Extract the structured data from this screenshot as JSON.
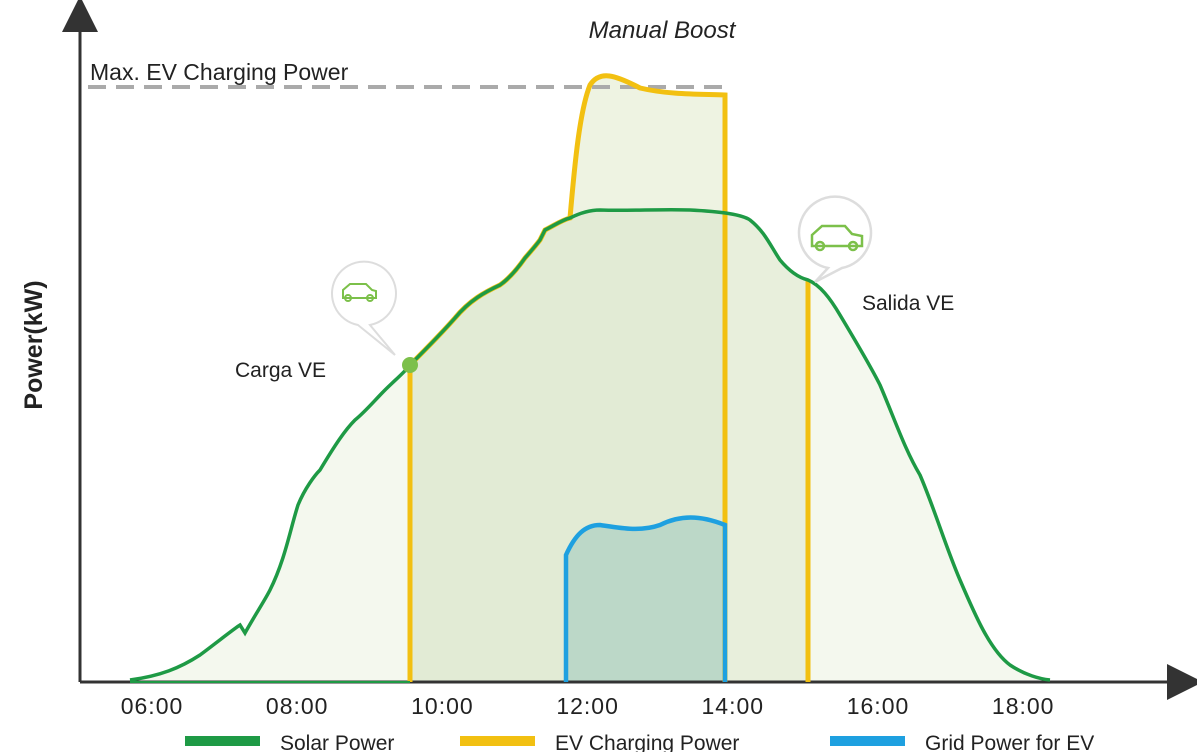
{
  "title": "Manual Boost",
  "y_axis_label": "Power(kW)",
  "max_line_label": "Max. EV Charging Power",
  "x_ticks": [
    "06:00",
    "08:00",
    "10:00",
    "12:00",
    "14:00",
    "16:00",
    "18:00"
  ],
  "annotations": {
    "start": "Carga VE",
    "end": "Salida VE"
  },
  "legend": [
    "Solar Power",
    "EV Charging Power",
    "Grid Power for EV"
  ]
}
